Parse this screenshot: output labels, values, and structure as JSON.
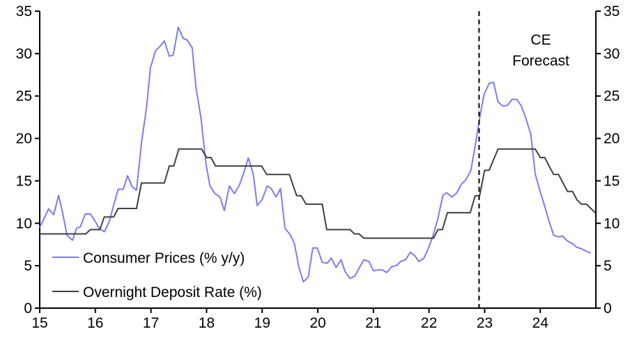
{
  "chart_data": {
    "type": "line",
    "title": "",
    "xlabel": "",
    "ylabel": "",
    "xlim": [
      15,
      25
    ],
    "ylim": [
      0,
      35
    ],
    "x_ticks": [
      "15",
      "16",
      "17",
      "18",
      "19",
      "20",
      "21",
      "22",
      "23",
      "24"
    ],
    "y_ticks": [
      "0",
      "5",
      "10",
      "15",
      "20",
      "25",
      "30",
      "35"
    ],
    "grid": false,
    "legend_position": "bottom-left",
    "annotation": {
      "line1": "CE",
      "line2": "Forecast",
      "forecast_start": 22.9
    },
    "colors": {
      "cpi": "#7b7bf5",
      "rate": "#404040"
    },
    "series": [
      {
        "name": "Consumer Prices (% y/y)",
        "points": [
          [
            15.0,
            9.5
          ],
          [
            15.16,
            11.7
          ],
          [
            15.25,
            11.0
          ],
          [
            15.34,
            13.3
          ],
          [
            15.41,
            11.3
          ],
          [
            15.49,
            8.6
          ],
          [
            15.59,
            8.0
          ],
          [
            15.66,
            9.4
          ],
          [
            15.73,
            9.6
          ],
          [
            15.82,
            11.1
          ],
          [
            15.91,
            11.1
          ],
          [
            16.0,
            10.2
          ],
          [
            16.07,
            9.4
          ],
          [
            16.16,
            9.0
          ],
          [
            16.25,
            10.2
          ],
          [
            16.32,
            11.9
          ],
          [
            16.41,
            14.0
          ],
          [
            16.5,
            14.0
          ],
          [
            16.58,
            15.6
          ],
          [
            16.66,
            14.3
          ],
          [
            16.74,
            13.9
          ],
          [
            16.83,
            19.5
          ],
          [
            16.92,
            23.6
          ],
          [
            16.99,
            28.3
          ],
          [
            17.08,
            30.3
          ],
          [
            17.17,
            30.9
          ],
          [
            17.24,
            31.5
          ],
          [
            17.33,
            29.7
          ],
          [
            17.4,
            29.8
          ],
          [
            17.49,
            33.1
          ],
          [
            17.58,
            31.8
          ],
          [
            17.65,
            31.6
          ],
          [
            17.74,
            30.7
          ],
          [
            17.81,
            26.0
          ],
          [
            17.9,
            22.4
          ],
          [
            17.99,
            17.0
          ],
          [
            18.06,
            14.4
          ],
          [
            18.15,
            13.5
          ],
          [
            18.24,
            13.1
          ],
          [
            18.32,
            11.5
          ],
          [
            18.41,
            14.4
          ],
          [
            18.5,
            13.5
          ],
          [
            18.59,
            14.5
          ],
          [
            18.66,
            15.8
          ],
          [
            18.75,
            17.7
          ],
          [
            18.84,
            15.8
          ],
          [
            18.91,
            12.1
          ],
          [
            19.0,
            12.8
          ],
          [
            19.09,
            14.4
          ],
          [
            19.16,
            14.1
          ],
          [
            19.25,
            13.1
          ],
          [
            19.33,
            14.1
          ],
          [
            19.41,
            9.4
          ],
          [
            19.5,
            8.7
          ],
          [
            19.58,
            7.6
          ],
          [
            19.66,
            4.8
          ],
          [
            19.74,
            3.1
          ],
          [
            19.83,
            3.7
          ],
          [
            19.91,
            7.1
          ],
          [
            19.99,
            7.1
          ],
          [
            20.08,
            5.4
          ],
          [
            20.17,
            5.3
          ],
          [
            20.24,
            5.9
          ],
          [
            20.33,
            4.8
          ],
          [
            20.42,
            5.7
          ],
          [
            20.49,
            4.3
          ],
          [
            20.58,
            3.5
          ],
          [
            20.67,
            3.8
          ],
          [
            20.74,
            4.7
          ],
          [
            20.83,
            5.7
          ],
          [
            20.92,
            5.5
          ],
          [
            21.0,
            4.4
          ],
          [
            21.08,
            4.5
          ],
          [
            21.16,
            4.5
          ],
          [
            21.24,
            4.2
          ],
          [
            21.33,
            4.9
          ],
          [
            21.41,
            5.0
          ],
          [
            21.49,
            5.5
          ],
          [
            21.58,
            5.7
          ],
          [
            21.66,
            6.6
          ],
          [
            21.74,
            6.2
          ],
          [
            21.82,
            5.5
          ],
          [
            21.91,
            5.9
          ],
          [
            21.99,
            7.1
          ],
          [
            22.07,
            8.5
          ],
          [
            22.16,
            10.6
          ],
          [
            22.25,
            13.3
          ],
          [
            22.32,
            13.6
          ],
          [
            22.41,
            13.1
          ],
          [
            22.5,
            13.6
          ],
          [
            22.58,
            14.6
          ],
          [
            22.66,
            15.1
          ],
          [
            22.75,
            16.2
          ],
          [
            22.83,
            19.1
          ],
          [
            22.91,
            22.4
          ],
          [
            22.99,
            25.2
          ],
          [
            23.08,
            26.5
          ],
          [
            23.16,
            26.6
          ],
          [
            23.24,
            24.3
          ],
          [
            23.33,
            23.8
          ],
          [
            23.41,
            23.9
          ],
          [
            23.49,
            24.6
          ],
          [
            23.58,
            24.6
          ],
          [
            23.66,
            23.8
          ],
          [
            23.74,
            22.4
          ],
          [
            23.83,
            20.5
          ],
          [
            23.91,
            15.8
          ],
          [
            24.0,
            13.7
          ],
          [
            24.08,
            12.0
          ],
          [
            24.16,
            10.2
          ],
          [
            24.24,
            8.6
          ],
          [
            24.33,
            8.4
          ],
          [
            24.4,
            8.5
          ],
          [
            24.49,
            7.9
          ],
          [
            24.58,
            7.6
          ],
          [
            24.65,
            7.2
          ],
          [
            24.74,
            7.0
          ],
          [
            24.83,
            6.7
          ],
          [
            24.91,
            6.5
          ]
        ]
      },
      {
        "name": "Overnight Deposit Rate (%)",
        "points": [
          [
            15.0,
            8.75
          ],
          [
            15.83,
            8.75
          ],
          [
            15.91,
            9.25
          ],
          [
            16.08,
            9.25
          ],
          [
            16.16,
            10.75
          ],
          [
            16.33,
            10.75
          ],
          [
            16.41,
            11.75
          ],
          [
            16.74,
            11.75
          ],
          [
            16.83,
            14.75
          ],
          [
            17.24,
            14.75
          ],
          [
            17.33,
            16.75
          ],
          [
            17.41,
            16.75
          ],
          [
            17.5,
            18.75
          ],
          [
            17.91,
            18.75
          ],
          [
            18.0,
            17.75
          ],
          [
            18.08,
            17.75
          ],
          [
            18.16,
            16.75
          ],
          [
            18.99,
            16.75
          ],
          [
            19.08,
            15.75
          ],
          [
            19.49,
            15.75
          ],
          [
            19.58,
            14.0
          ],
          [
            19.62,
            13.25
          ],
          [
            19.7,
            13.25
          ],
          [
            19.79,
            12.25
          ],
          [
            20.08,
            12.25
          ],
          [
            20.16,
            9.25
          ],
          [
            20.58,
            9.25
          ],
          [
            20.66,
            8.75
          ],
          [
            20.74,
            8.75
          ],
          [
            20.83,
            8.25
          ],
          [
            22.08,
            8.25
          ],
          [
            22.16,
            9.25
          ],
          [
            22.24,
            9.25
          ],
          [
            22.33,
            11.25
          ],
          [
            22.74,
            11.25
          ],
          [
            22.83,
            13.25
          ],
          [
            22.91,
            13.25
          ],
          [
            23.0,
            16.25
          ],
          [
            23.08,
            16.25
          ],
          [
            23.24,
            18.75
          ],
          [
            23.91,
            18.75
          ],
          [
            24.0,
            17.75
          ],
          [
            24.08,
            17.75
          ],
          [
            24.24,
            15.75
          ],
          [
            24.33,
            15.75
          ],
          [
            24.49,
            13.75
          ],
          [
            24.58,
            13.75
          ],
          [
            24.66,
            12.75
          ],
          [
            24.74,
            12.25
          ],
          [
            24.83,
            12.25
          ],
          [
            24.99,
            11.25
          ]
        ]
      }
    ]
  }
}
